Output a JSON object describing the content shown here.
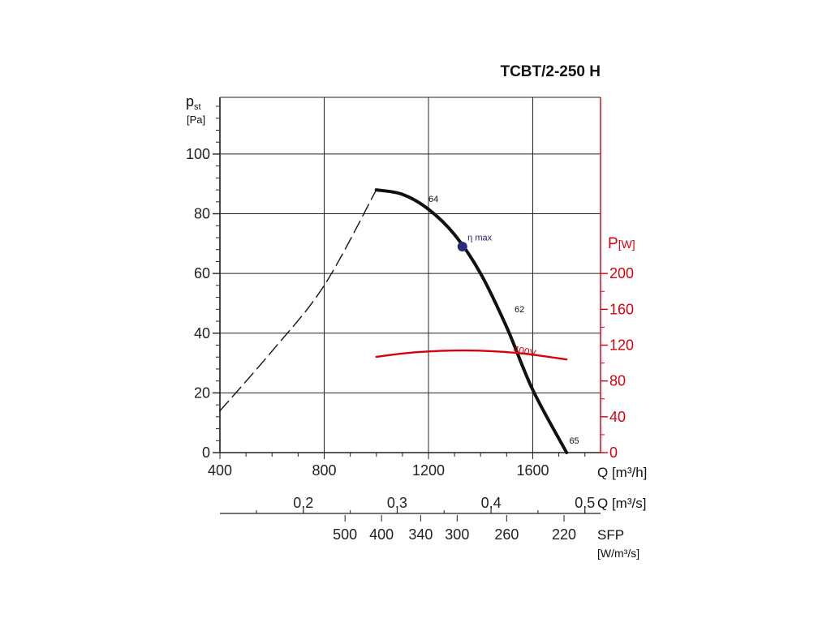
{
  "chart_data": {
    "type": "line",
    "title": "TCBT/2-250 H",
    "y_label_main": "p",
    "y_label_sub": "st",
    "y_unit": "[Pa]",
    "y_ticks": [
      0,
      20,
      40,
      60,
      80,
      100
    ],
    "ylim": [
      0,
      119
    ],
    "x_label": "Q [m³/h]",
    "x_ticks": [
      400,
      800,
      1200,
      1600
    ],
    "xlim": [
      400,
      1860
    ],
    "x_grid": [
      400,
      800,
      1200,
      1600,
      1860
    ],
    "y2_label_main": "P",
    "y2_unit": "[W]",
    "y2_ticks": [
      0,
      40,
      80,
      120,
      160,
      200
    ],
    "y2_color": "#d7000f",
    "x2_label": "Q [m³/s]",
    "x2_ticks": [
      {
        "label": "0,2",
        "q": 720
      },
      {
        "label": "0,3",
        "q": 1080
      },
      {
        "label": "0,4",
        "q": 1440
      },
      {
        "label": "0,5",
        "q": 1800
      }
    ],
    "x3_label": "SFP",
    "x3_unit": "[W/m³/s]",
    "x3_ticks": [
      {
        "label": "500",
        "q": 880
      },
      {
        "label": "400",
        "q": 1020
      },
      {
        "label": "340",
        "q": 1170
      },
      {
        "label": "300",
        "q": 1310
      },
      {
        "label": "260",
        "q": 1500
      },
      {
        "label": "220",
        "q": 1720
      }
    ],
    "series": [
      {
        "kind": "pressure",
        "style": "solid",
        "color": "#111111",
        "points": [
          [
            1000,
            88
          ],
          [
            1100,
            86.5
          ],
          [
            1200,
            81.5
          ],
          [
            1300,
            73
          ],
          [
            1400,
            60
          ],
          [
            1500,
            42
          ],
          [
            1600,
            21
          ],
          [
            1730,
            0
          ]
        ]
      },
      {
        "kind": "pressure",
        "style": "dashed",
        "color": "#111111",
        "points": [
          [
            400,
            14
          ],
          [
            600,
            34
          ],
          [
            800,
            56
          ],
          [
            1000,
            88
          ]
        ]
      },
      {
        "name": "400V",
        "kind": "power",
        "axis": "right",
        "style": "solid",
        "color": "#d7000f",
        "points": [
          [
            1000,
            107
          ],
          [
            1150,
            112
          ],
          [
            1350,
            114
          ],
          [
            1550,
            111
          ],
          [
            1730,
            104
          ]
        ]
      }
    ],
    "annotations": [
      {
        "text": "64",
        "q": 1200,
        "p": 84
      },
      {
        "text": "62",
        "q": 1530,
        "p": 47
      },
      {
        "text": "65",
        "q": 1740,
        "p": 3
      },
      {
        "text": "η max",
        "q": 1350,
        "p": 71,
        "color": "#1f1f6e"
      }
    ],
    "marker": {
      "label": "η max",
      "q": 1330,
      "p": 69,
      "color": "#2a2a7a"
    },
    "grid": true
  }
}
